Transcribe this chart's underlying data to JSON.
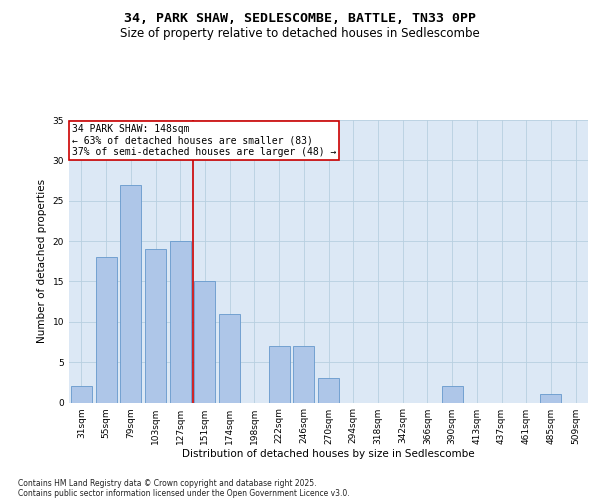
{
  "title1": "34, PARK SHAW, SEDLESCOMBE, BATTLE, TN33 0PP",
  "title2": "Size of property relative to detached houses in Sedlescombe",
  "xlabel": "Distribution of detached houses by size in Sedlescombe",
  "ylabel": "Number of detached properties",
  "categories": [
    "31sqm",
    "55sqm",
    "79sqm",
    "103sqm",
    "127sqm",
    "151sqm",
    "174sqm",
    "198sqm",
    "222sqm",
    "246sqm",
    "270sqm",
    "294sqm",
    "318sqm",
    "342sqm",
    "366sqm",
    "390sqm",
    "413sqm",
    "437sqm",
    "461sqm",
    "485sqm",
    "509sqm"
  ],
  "values": [
    2,
    18,
    27,
    19,
    20,
    15,
    11,
    0,
    7,
    7,
    3,
    0,
    0,
    0,
    0,
    2,
    0,
    0,
    0,
    1,
    0
  ],
  "bar_color": "#aec6e8",
  "bar_edge_color": "#6699cc",
  "vline_color": "#cc0000",
  "annotation_title": "34 PARK SHAW: 148sqm",
  "annotation_line1": "← 63% of detached houses are smaller (83)",
  "annotation_line2": "37% of semi-detached houses are larger (48) →",
  "annotation_box_color": "#ffffff",
  "annotation_box_edge": "#cc0000",
  "ylim": [
    0,
    35
  ],
  "yticks": [
    0,
    5,
    10,
    15,
    20,
    25,
    30,
    35
  ],
  "background_color": "#dce8f5",
  "footer1": "Contains HM Land Registry data © Crown copyright and database right 2025.",
  "footer2": "Contains public sector information licensed under the Open Government Licence v3.0.",
  "title1_fontsize": 9.5,
  "title2_fontsize": 8.5,
  "axis_label_fontsize": 7.5,
  "tick_fontsize": 6.5,
  "annotation_fontsize": 7,
  "footer_fontsize": 5.5
}
